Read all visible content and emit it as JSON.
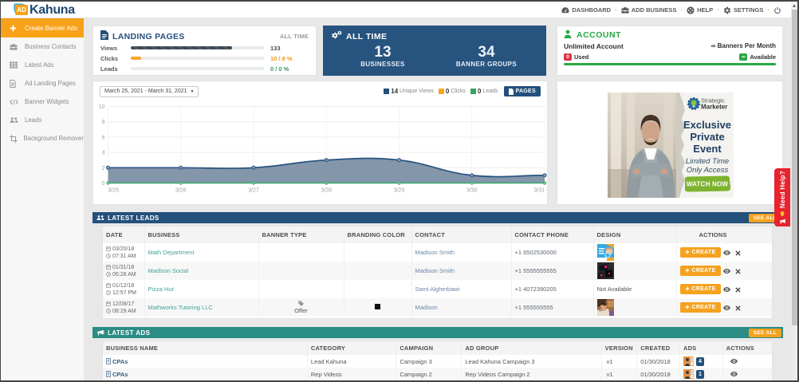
{
  "brand": {
    "badge": "AD",
    "name": "Kahuna"
  },
  "topnav": {
    "items": [
      {
        "label": "DASHBOARD",
        "icon": "dashboard-icon"
      },
      {
        "label": "ADD BUSINESS",
        "icon": "add-business-icon"
      },
      {
        "label": "HELP",
        "icon": "help-icon"
      },
      {
        "label": "SETTINGS",
        "icon": "settings-icon"
      }
    ],
    "power_icon": "power-icon"
  },
  "sidebar": {
    "items": [
      {
        "label": "Create Banner Ads",
        "active": true
      },
      {
        "label": "Business Contacts"
      },
      {
        "label": "Latest Ads"
      },
      {
        "label": "Ad Landing Pages"
      },
      {
        "label": "Banner Widgets"
      },
      {
        "label": "Leads"
      },
      {
        "label": "Background Remover"
      }
    ]
  },
  "landing_pages": {
    "title": "LANDING PAGES",
    "period": "ALL TIME",
    "rows": [
      {
        "label": "Views",
        "value": "133",
        "percent": 76
      },
      {
        "label": "Clicks",
        "value": "10 / 8 %",
        "percent": 8
      },
      {
        "label": "Leads",
        "value": "0 / 0 %",
        "percent": 0
      }
    ]
  },
  "all_time": {
    "title": "ALL TIME",
    "stats": [
      {
        "value": "13",
        "label": "BUSINESSES"
      },
      {
        "value": "34",
        "label": "BANNER GROUPS"
      }
    ]
  },
  "account": {
    "title": "ACCOUNT",
    "plan": "Unlimited Account",
    "per_month": "∞ Banners Per Month",
    "used_value": "0",
    "used_label": "Used",
    "available_value": "∞",
    "available_label": "Available"
  },
  "chart": {
    "date_range": "March 25, 2021 - March 31, 2021",
    "legend": [
      {
        "num": "14",
        "label": "Unique Views",
        "color": "#24507c"
      },
      {
        "num": "0",
        "label": "Clicks",
        "color": "#f5a623"
      },
      {
        "num": "0",
        "label": "Leads",
        "color": "#35a665"
      }
    ],
    "pages_button": "PAGES"
  },
  "chart_data": {
    "type": "area",
    "x": [
      "3/25",
      "3/26",
      "3/27",
      "3/28",
      "3/29",
      "3/30",
      "3/31"
    ],
    "series": [
      {
        "name": "Unique Views",
        "values": [
          2,
          2,
          2,
          3,
          3,
          1,
          1
        ],
        "color": "#27537f",
        "fill": "#8496aa"
      },
      {
        "name": "Clicks",
        "values": [
          0,
          0,
          0,
          0,
          0,
          0,
          0
        ],
        "color": "#f5a623"
      },
      {
        "name": "Leads",
        "values": [
          0,
          0,
          0,
          0,
          0,
          0,
          0
        ],
        "color": "#3aa76d"
      }
    ],
    "ylim": [
      0,
      10
    ],
    "yticks": [
      0,
      2,
      4,
      6,
      8,
      10
    ],
    "grid": true,
    "legend_position": "top-right"
  },
  "ad": {
    "logo_top": "Strategic",
    "logo_bottom": "Marketer",
    "headline1": "Exclusive",
    "headline2": "Private",
    "headline3": "Event",
    "sub1": "Limited Time",
    "sub2": "Only Access",
    "cta": "WATCH NOW"
  },
  "leads": {
    "title": "LATEST LEADS",
    "see_all": "SEE ALL",
    "columns": [
      "DATE",
      "BUSINESS",
      "BANNER TYPE",
      "BRANDING COLOR",
      "CONTACT",
      "CONTACT PHONE",
      "DESIGN",
      "ACTIONS"
    ],
    "create_label": "CREATE",
    "rows": [
      {
        "date": "03/20/18",
        "time": "07:31 AM",
        "business": "Math Department",
        "banner_type": "",
        "contact": "Madison Smith",
        "phone": "+1 6502530000",
        "design": "thumbnail"
      },
      {
        "date": "01/31/18",
        "time": "05:28 AM",
        "business": "Madison Social",
        "banner_type": "",
        "contact": "Madison Smith",
        "phone": "+1 5555555555",
        "design": "thumbnail"
      },
      {
        "date": "01/12/18",
        "time": "12:57 PM",
        "business": "Pizza Hut",
        "banner_type": "",
        "contact": "Sami Algherbawi",
        "phone": "+1 4072390205",
        "design": "Not Available"
      },
      {
        "date": "12/08/17",
        "time": "08:29 AM",
        "business": "Mathworks Tutoring LLC",
        "banner_type": "Offer",
        "swatch_style": "background:#111111",
        "contact": "Madison",
        "phone": "+1 555555555",
        "design": "thumbnail"
      }
    ]
  },
  "ads": {
    "title": "LATEST ADS",
    "see_all": "SEE ALL",
    "columns": [
      "BUSINESS NAME",
      "CATEGORY",
      "CAMPAIGN",
      "AD GROUP",
      "VERSION",
      "CREATED",
      "ADS",
      "ACTIONS"
    ],
    "rows": [
      {
        "business": "CPAs",
        "category": "Lead Kahuna",
        "campaign": "Campaign 3",
        "ad_group": "Lead Kahuna Campaign 3",
        "version": "v1",
        "created": "01/30/2018",
        "count": "4"
      },
      {
        "business": "CPAs",
        "category": "Rep Videos",
        "campaign": "Campaign 2",
        "ad_group": "Rep Videos Campaign 2",
        "version": "v1",
        "created": "01/30/2018",
        "count": "1"
      }
    ]
  },
  "help_tab": {
    "label": "Need Help?"
  },
  "theme": {
    "orange": "#f7a219",
    "navy": "#24507c",
    "teal": "#2b8c85",
    "green": "#28a745",
    "red": "#dc3545",
    "page_bg": "#e8e8e8"
  }
}
